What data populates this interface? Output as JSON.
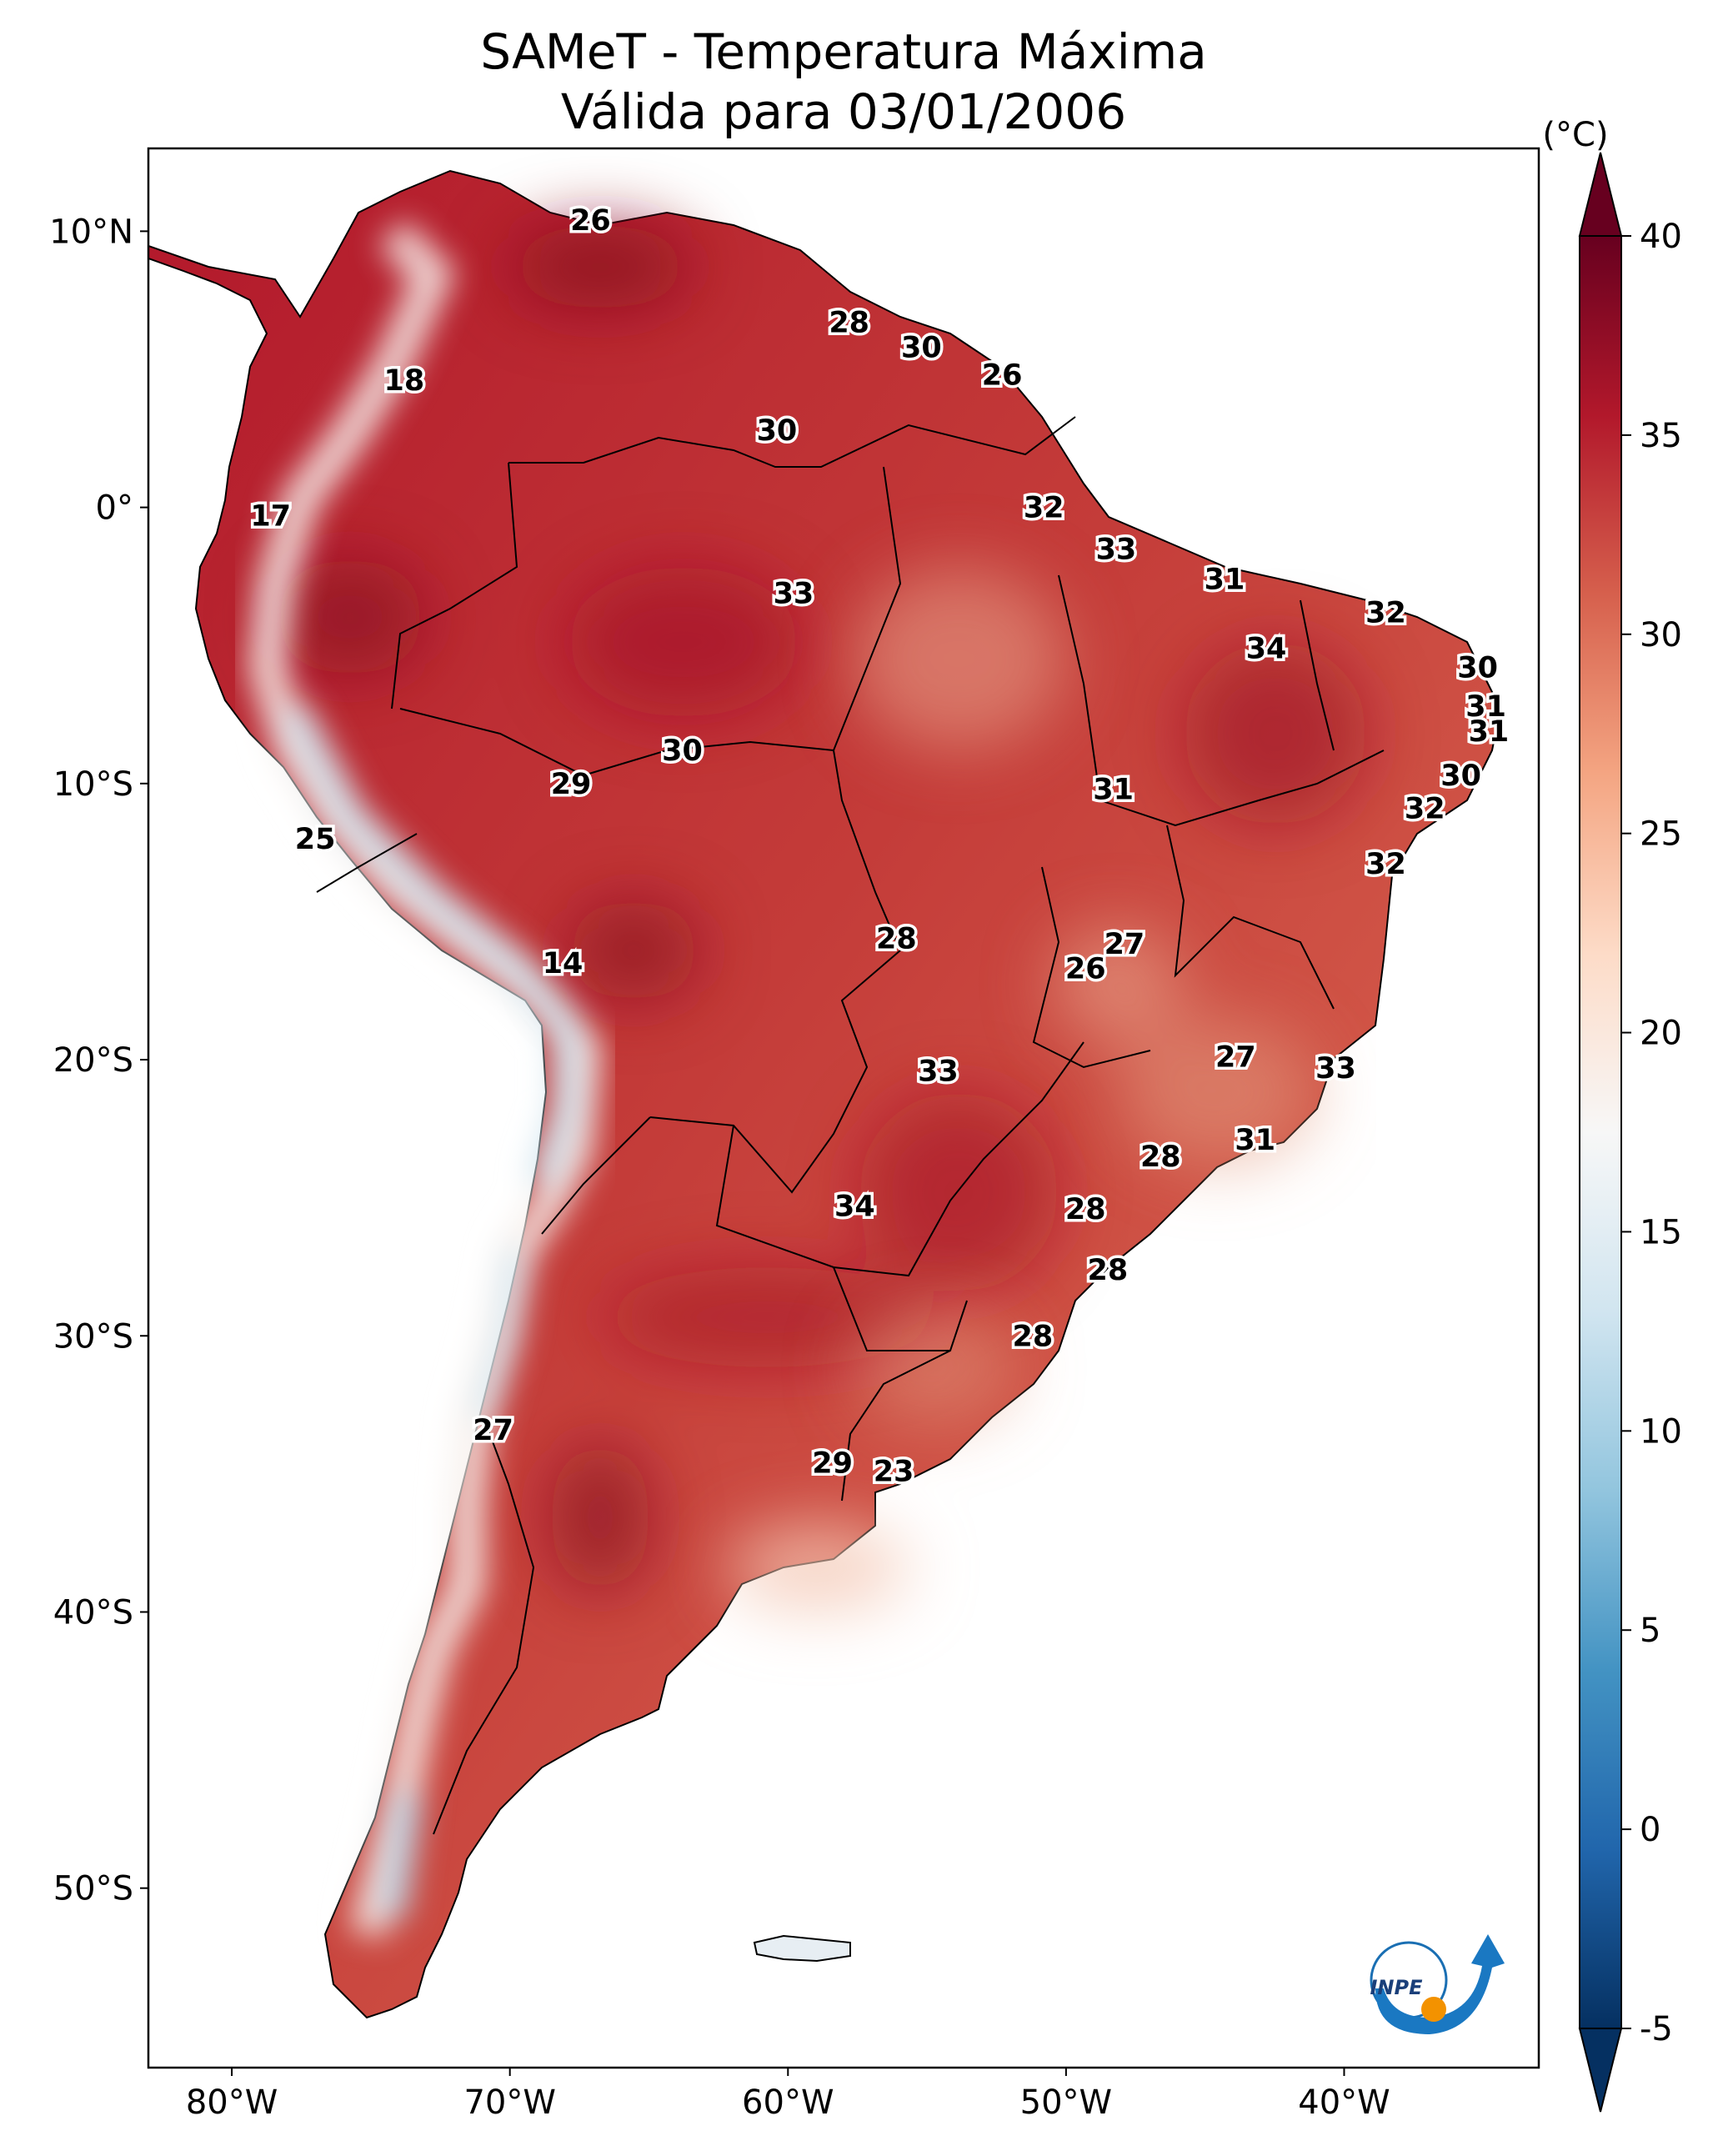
{
  "title": {
    "line1": "SAMeT - Temperatura Máxima",
    "line2": "Válida para 03/01/2006"
  },
  "map": {
    "lon_range": [
      -83,
      -33
    ],
    "lat_range": [
      -56.5,
      13
    ],
    "lat_ticks": [
      {
        "value": 10,
        "label": "10°N"
      },
      {
        "value": 0,
        "label": "0°"
      },
      {
        "value": -10,
        "label": "10°S"
      },
      {
        "value": -20,
        "label": "20°S"
      },
      {
        "value": -30,
        "label": "30°S"
      },
      {
        "value": -40,
        "label": "40°S"
      },
      {
        "value": -50,
        "label": "50°S"
      }
    ],
    "lon_ticks": [
      {
        "value": -80,
        "label": "80°W"
      },
      {
        "value": -70,
        "label": "70°W"
      },
      {
        "value": -60,
        "label": "60°W"
      },
      {
        "value": -50,
        "label": "50°W"
      },
      {
        "value": -40,
        "label": "40°W"
      }
    ],
    "city_labels": [
      {
        "lon": -67.1,
        "lat": 10.4,
        "value": "26"
      },
      {
        "lon": -57.8,
        "lat": 6.7,
        "value": "28"
      },
      {
        "lon": -55.2,
        "lat": 5.8,
        "value": "30"
      },
      {
        "lon": -52.3,
        "lat": 4.8,
        "value": "26"
      },
      {
        "lon": -73.8,
        "lat": 4.6,
        "value": "18"
      },
      {
        "lon": -60.4,
        "lat": 2.8,
        "value": "30"
      },
      {
        "lon": -50.8,
        "lat": 0.0,
        "value": "32"
      },
      {
        "lon": -78.6,
        "lat": -0.3,
        "value": "17"
      },
      {
        "lon": -48.2,
        "lat": -1.5,
        "value": "33"
      },
      {
        "lon": -59.8,
        "lat": -3.1,
        "value": "33"
      },
      {
        "lon": -44.3,
        "lat": -2.6,
        "value": "31"
      },
      {
        "lon": -38.5,
        "lat": -3.8,
        "value": "32"
      },
      {
        "lon": -42.8,
        "lat": -5.1,
        "value": "34"
      },
      {
        "lon": -35.2,
        "lat": -5.8,
        "value": "30"
      },
      {
        "lon": -34.9,
        "lat": -7.2,
        "value": "31"
      },
      {
        "lon": -34.8,
        "lat": -8.1,
        "value": "31"
      },
      {
        "lon": -63.8,
        "lat": -8.8,
        "value": "30"
      },
      {
        "lon": -35.8,
        "lat": -9.7,
        "value": "30"
      },
      {
        "lon": -67.8,
        "lat": -10.0,
        "value": "29"
      },
      {
        "lon": -48.3,
        "lat": -10.2,
        "value": "31"
      },
      {
        "lon": -37.1,
        "lat": -10.9,
        "value": "32"
      },
      {
        "lon": -77.0,
        "lat": -12.0,
        "value": "25"
      },
      {
        "lon": -38.5,
        "lat": -12.9,
        "value": "32"
      },
      {
        "lon": -56.1,
        "lat": -15.6,
        "value": "28"
      },
      {
        "lon": -47.9,
        "lat": -15.8,
        "value": "27"
      },
      {
        "lon": -49.3,
        "lat": -16.7,
        "value": "26"
      },
      {
        "lon": -68.1,
        "lat": -16.5,
        "value": "14"
      },
      {
        "lon": -43.9,
        "lat": -19.9,
        "value": "27"
      },
      {
        "lon": -40.3,
        "lat": -20.3,
        "value": "33"
      },
      {
        "lon": -54.6,
        "lat": -20.4,
        "value": "33"
      },
      {
        "lon": -43.2,
        "lat": -22.9,
        "value": "31"
      },
      {
        "lon": -46.6,
        "lat": -23.5,
        "value": "28"
      },
      {
        "lon": -57.6,
        "lat": -25.3,
        "value": "34"
      },
      {
        "lon": -49.3,
        "lat": -25.4,
        "value": "28"
      },
      {
        "lon": -48.5,
        "lat": -27.6,
        "value": "28"
      },
      {
        "lon": -51.2,
        "lat": -30.0,
        "value": "28"
      },
      {
        "lon": -70.6,
        "lat": -33.4,
        "value": "27"
      },
      {
        "lon": -58.4,
        "lat": -34.6,
        "value": "29"
      },
      {
        "lon": -56.2,
        "lat": -34.9,
        "value": "23"
      }
    ]
  },
  "colorbar": {
    "unit_label": "(°C)",
    "vmin": -5,
    "vmax": 40,
    "ticks": [
      {
        "value": 40,
        "label": "40"
      },
      {
        "value": 35,
        "label": "35"
      },
      {
        "value": 30,
        "label": "30"
      },
      {
        "value": 25,
        "label": "25"
      },
      {
        "value": 20,
        "label": "20"
      },
      {
        "value": 15,
        "label": "15"
      },
      {
        "value": 10,
        "label": "10"
      },
      {
        "value": 5,
        "label": "5"
      },
      {
        "value": 0,
        "label": "0"
      },
      {
        "value": -5,
        "label": "-5"
      }
    ],
    "colors": [
      "#053061",
      "#2166ac",
      "#4393c3",
      "#92c5de",
      "#d1e5f0",
      "#f7f7f7",
      "#fddbc7",
      "#f4a582",
      "#d6604d",
      "#b2182b",
      "#67001f"
    ]
  },
  "logo": {
    "text": "INPE"
  }
}
